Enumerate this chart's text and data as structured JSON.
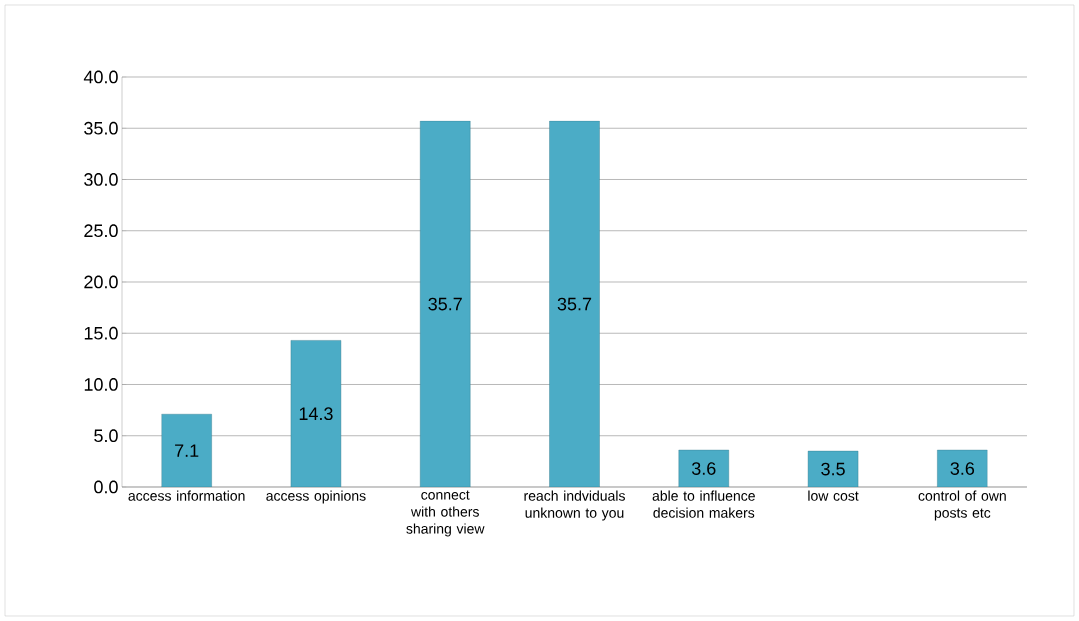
{
  "chart_data": {
    "type": "bar",
    "categories": [
      "access information",
      "access opinions",
      "connect with others sharing view",
      "reach indviduals unknown to you",
      "able to influence decision makers",
      "low cost",
      "control of own posts etc"
    ],
    "values": [
      7.1,
      14.3,
      35.7,
      35.7,
      3.6,
      3.5,
      3.6
    ],
    "color": "#4bacc6",
    "ylim": [
      0,
      40
    ],
    "yticks": [
      {
        "value": 0,
        "label": "0.0"
      },
      {
        "value": 5,
        "label": "5.0"
      },
      {
        "value": 10,
        "label": "10.0"
      },
      {
        "value": 15,
        "label": "15.0"
      },
      {
        "value": 20,
        "label": "20.0"
      },
      {
        "value": 25,
        "label": "25.0"
      },
      {
        "value": 30,
        "label": "30.0"
      },
      {
        "value": 35,
        "label": "35.0"
      },
      {
        "value": 40,
        "label": "40.0"
      }
    ],
    "grid": "y",
    "data_labels": true
  }
}
